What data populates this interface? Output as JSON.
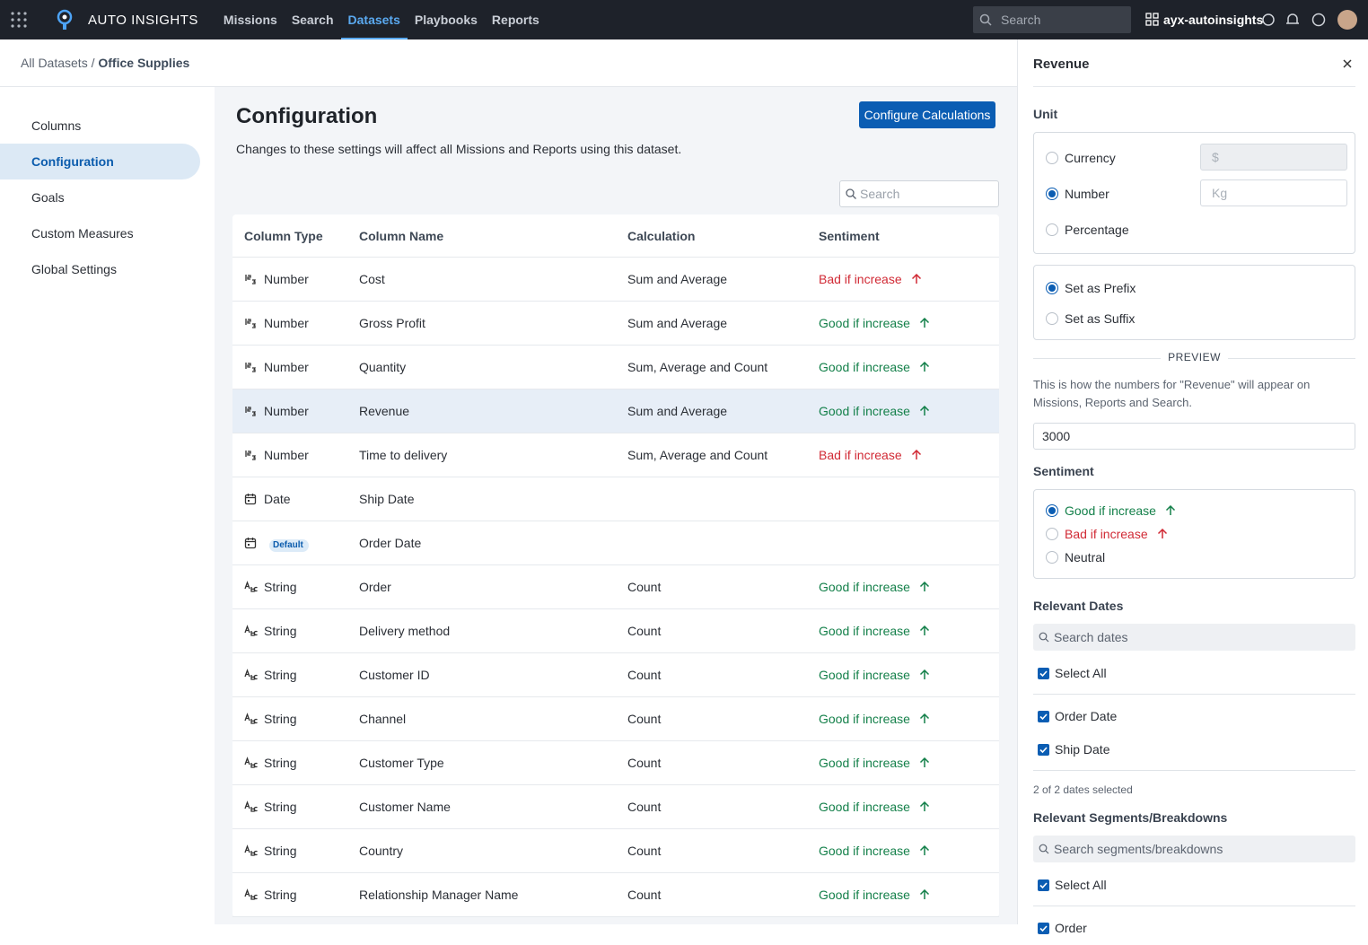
{
  "nav": {
    "brand": "AUTO INSIGHTS",
    "links": [
      "Missions",
      "Search",
      "Datasets",
      "Playbooks",
      "Reports"
    ],
    "search_placeholder": "Search",
    "workspace": "ayx-autoinsights"
  },
  "breadcrumb": [
    "All Datasets",
    "Office Supplies"
  ],
  "sidebar": {
    "items": [
      "Columns",
      "Configuration",
      "Goals",
      "Custom Measures",
      "Global Settings"
    ],
    "active": 1
  },
  "main": {
    "title": "Configuration",
    "description": "Changes to these settings will affect all Missions and Reports using this dataset.",
    "button": "Configure Calculations",
    "search_placeholder": "Search"
  },
  "table": {
    "headers": [
      "Column Type",
      "Column Name",
      "Calculation",
      "Sentiment"
    ],
    "rows": [
      {
        "type": "Number",
        "name": "Cost",
        "calculation": "Sum and Average",
        "sentiment": "Bad if increase"
      },
      {
        "type": "Number",
        "name": "Gross Profit",
        "calculation": "Sum and Average",
        "sentiment": "Good if increase"
      },
      {
        "type": "Number",
        "name": "Quantity",
        "calculation": "Sum, Average and Count",
        "sentiment": "Good if increase"
      },
      {
        "type": "Number",
        "name": "Revenue",
        "calculation": "Sum and Average",
        "sentiment": "Good if increase"
      },
      {
        "type": "Number",
        "name": "Time to delivery",
        "calculation": "Sum, Average and Count",
        "sentiment": "Bad if increase"
      },
      {
        "type": "Date",
        "name": "Ship Date"
      },
      {
        "badge": "Default",
        "name": "Order Date"
      },
      {
        "type": "String",
        "name": "Order",
        "calculation": "Count",
        "sentiment": "Good if increase"
      },
      {
        "type": "String",
        "name": "Delivery method",
        "calculation": "Count",
        "sentiment": "Good if increase"
      },
      {
        "type": "String",
        "name": "Customer ID",
        "calculation": "Count",
        "sentiment": "Good if increase"
      },
      {
        "type": "String",
        "name": "Channel",
        "calculation": "Count",
        "sentiment": "Good if increase"
      },
      {
        "type": "String",
        "name": "Customer Type",
        "calculation": "Count",
        "sentiment": "Good if increase"
      },
      {
        "type": "String",
        "name": "Customer Name",
        "calculation": "Count",
        "sentiment": "Good if increase"
      },
      {
        "type": "String",
        "name": "Country",
        "calculation": "Count",
        "sentiment": "Good if increase"
      },
      {
        "type": "String",
        "name": "Relationship Manager Name",
        "calculation": "Count",
        "sentiment": "Good if increase"
      }
    ]
  },
  "panel": {
    "title": "Revenue",
    "unit": {
      "label": "Unit",
      "options": [
        {
          "label": "Currency",
          "placeholder": "$"
        },
        {
          "label": "Number",
          "placeholder": "Kg"
        },
        {
          "label": "Percentage"
        }
      ],
      "selected": 1
    },
    "position": {
      "options": [
        "Set as Prefix",
        "Set as Suffix"
      ],
      "selected": 0
    },
    "preview": {
      "label": "PREVIEW",
      "text": "This is how the numbers for \"Revenue\" will appear on Missions, Reports and Search.",
      "value": 3000
    },
    "sentiment": {
      "label": "Sentiment",
      "options": [
        "Good if increase",
        "Bad if increase",
        "Neutral"
      ],
      "selected": 0
    },
    "dates": {
      "label": "Relevant Dates",
      "placeholder": "Search dates",
      "select_all": "Select All",
      "items": [
        "Order Date",
        "Ship Date"
      ],
      "summary": "2 of 2 dates selected"
    },
    "segments": {
      "label": "Relevant Segments/Breakdowns",
      "placeholder": "Search segments/breakdowns",
      "select_all": "Select All",
      "items": [
        "Order"
      ]
    }
  }
}
